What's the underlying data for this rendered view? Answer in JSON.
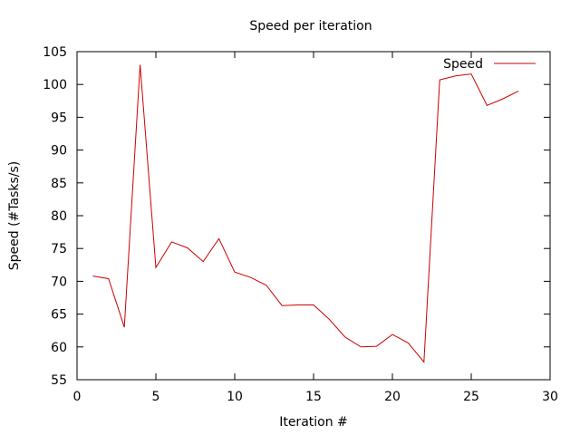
{
  "chart_data": {
    "type": "line",
    "title": "Speed per iteration",
    "xlabel": "Iteration #",
    "ylabel": "Speed (#Tasks/s)",
    "xlim": [
      0,
      30
    ],
    "ylim": [
      55,
      105
    ],
    "xticks": [
      "0",
      "5",
      "10",
      "15",
      "20",
      "25",
      "30"
    ],
    "yticks": [
      "55",
      "60",
      "65",
      "70",
      "75",
      "80",
      "85",
      "90",
      "95",
      "100",
      "105"
    ],
    "grid": false,
    "legend_position": "top-right",
    "series": [
      {
        "name": "Speed",
        "color": "#cc0000",
        "x": [
          1,
          2,
          3,
          4,
          5,
          6,
          7,
          8,
          9,
          10,
          11,
          12,
          13,
          14,
          15,
          16,
          17,
          18,
          19,
          20,
          21,
          22,
          23,
          24,
          25,
          26,
          27,
          28
        ],
        "y": [
          70.8,
          70.4,
          63.0,
          103.0,
          72.1,
          76.0,
          75.1,
          73.0,
          76.5,
          71.4,
          70.6,
          69.4,
          66.3,
          66.4,
          66.4,
          64.2,
          61.5,
          60.0,
          60.1,
          61.9,
          60.6,
          57.7,
          100.7,
          101.3,
          101.6,
          96.8,
          97.8,
          99.0
        ]
      }
    ]
  }
}
